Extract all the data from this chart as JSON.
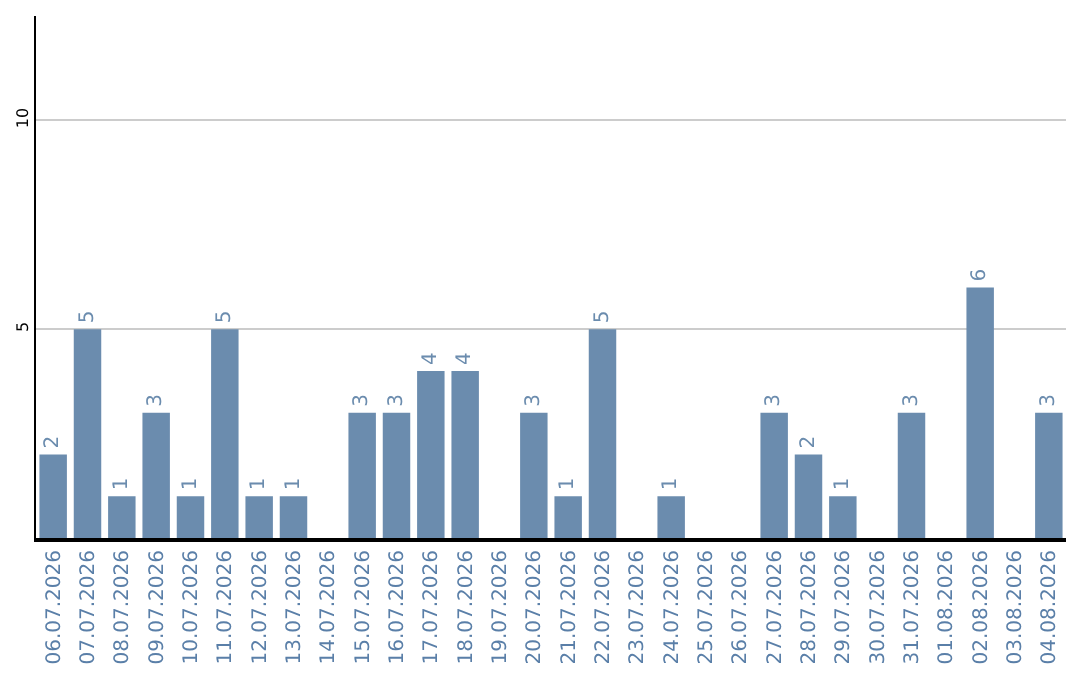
{
  "chart_data": {
    "type": "bar",
    "categories": [
      "06.07.2026",
      "07.07.2026",
      "08.07.2026",
      "09.07.2026",
      "10.07.2026",
      "11.07.2026",
      "12.07.2026",
      "13.07.2026",
      "14.07.2026",
      "15.07.2026",
      "16.07.2026",
      "17.07.2026",
      "18.07.2026",
      "19.07.2026",
      "20.07.2026",
      "21.07.2026",
      "22.07.2026",
      "23.07.2026",
      "24.07.2026",
      "25.07.2026",
      "26.07.2026",
      "27.07.2026",
      "28.07.2026",
      "29.07.2026",
      "30.07.2026",
      "31.07.2026",
      "01.08.2026",
      "02.08.2026",
      "03.08.2026",
      "04.08.2026"
    ],
    "values": [
      2,
      5,
      1,
      3,
      1,
      5,
      1,
      1,
      0,
      3,
      3,
      4,
      4,
      0,
      3,
      1,
      5,
      0,
      1,
      0,
      0,
      3,
      2,
      1,
      0,
      3,
      0,
      6,
      0,
      3
    ],
    "value_labels": [
      "2",
      "5",
      "1",
      "3",
      "1",
      "5",
      "1",
      "1",
      null,
      "3",
      "3",
      "4",
      "4",
      null,
      "3",
      "1",
      "5",
      null,
      "1",
      null,
      null,
      "3",
      "2",
      "1",
      null,
      "3",
      null,
      "6",
      null,
      "3"
    ],
    "color": "#6b8cae",
    "ylim": [
      0,
      12.5
    ],
    "yticks": [
      5,
      10
    ],
    "grid": "y",
    "legend": false
  }
}
